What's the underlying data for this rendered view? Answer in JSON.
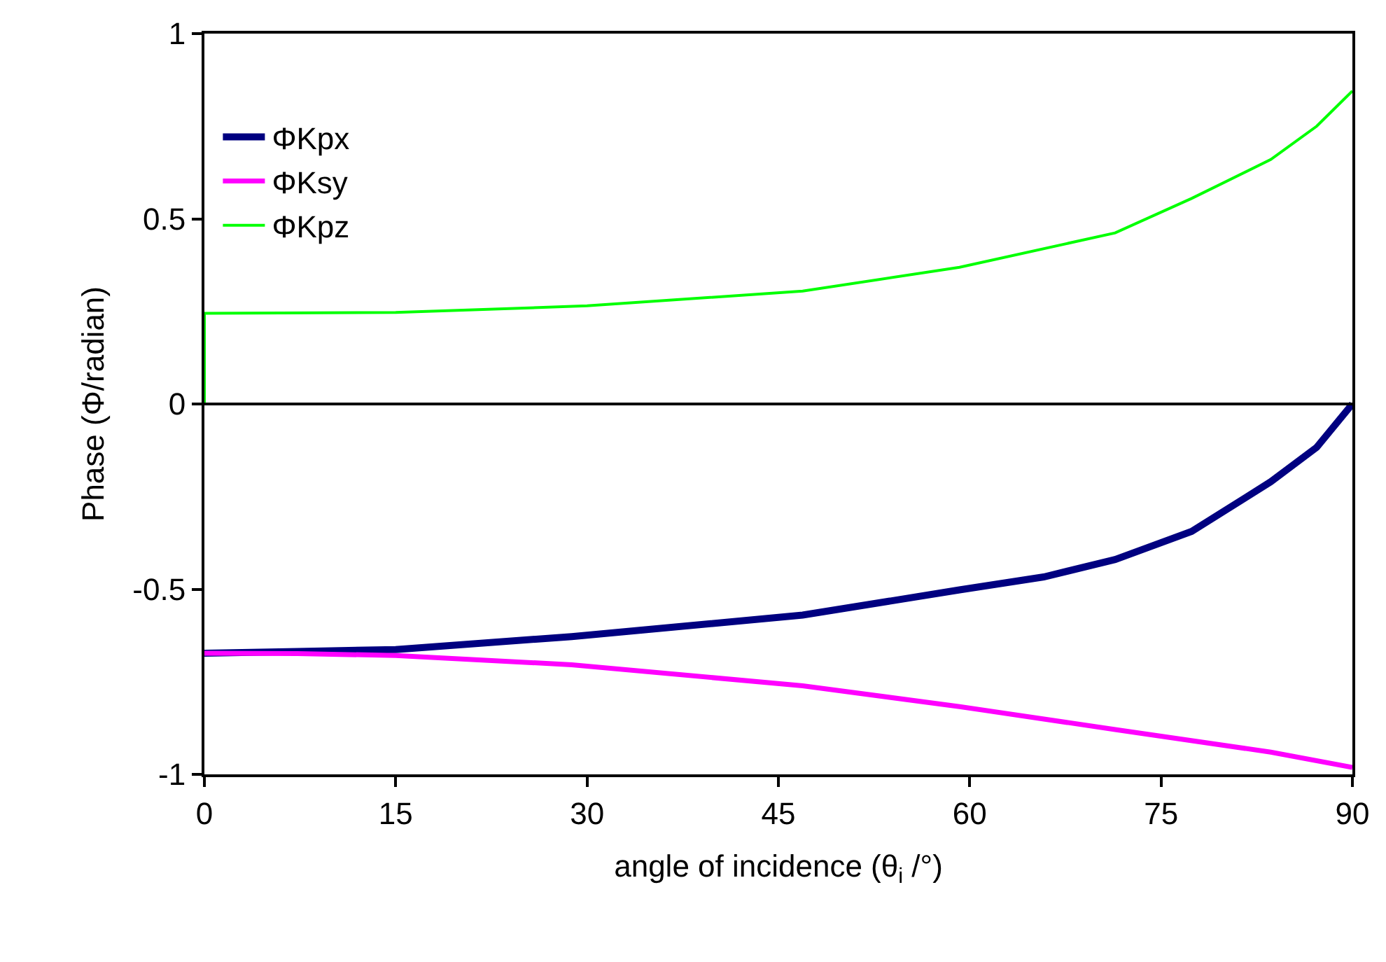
{
  "chart_data": {
    "type": "line",
    "xlabel": "angle of incidence (θ$_{i}$ /°)",
    "ylabel": "Phase (Φ/radian)",
    "xlim": [
      0,
      90
    ],
    "xticks": [
      0,
      15,
      30,
      45,
      60,
      75,
      90
    ],
    "ylim": [
      -1,
      1
    ],
    "yticks": [
      -1,
      -0.5,
      0,
      0.5,
      1
    ],
    "legend": "top left",
    "marker": "none",
    "line_style": "solid",
    "ref_lines": [
      {
        "axis": "y",
        "value": 0,
        "color": "#000000"
      }
    ],
    "series": [
      {
        "name": "ΦKpx",
        "color": "#000080",
        "x": [
          0,
          7.3,
          15,
          28.8,
          46.9,
          59.2,
          65.8,
          71.4,
          77.4,
          83.6,
          87.2,
          90
        ],
        "values": [
          -0.673,
          -0.668,
          -0.663,
          -0.628,
          -0.57,
          -0.502,
          -0.467,
          -0.42,
          -0.344,
          -0.21,
          -0.117,
          0
        ]
      },
      {
        "name": "ΦKsy",
        "color": "#ff00ff",
        "x": [
          0,
          7.3,
          15,
          28.8,
          46.9,
          59.2,
          71.4,
          83.6,
          90
        ],
        "values": [
          -0.673,
          -0.674,
          -0.679,
          -0.704,
          -0.761,
          -0.817,
          -0.879,
          -0.94,
          -0.981
        ]
      },
      {
        "name": "ΦKpz",
        "color": "#00ff00",
        "x": [
          0,
          0,
          15,
          30,
          46.9,
          59.2,
          71.4,
          77.4,
          83.6,
          87.2,
          90
        ],
        "values": [
          0,
          0.245,
          0.247,
          0.265,
          0.305,
          0.369,
          0.462,
          0.555,
          0.66,
          0.75,
          0.845
        ]
      }
    ]
  }
}
